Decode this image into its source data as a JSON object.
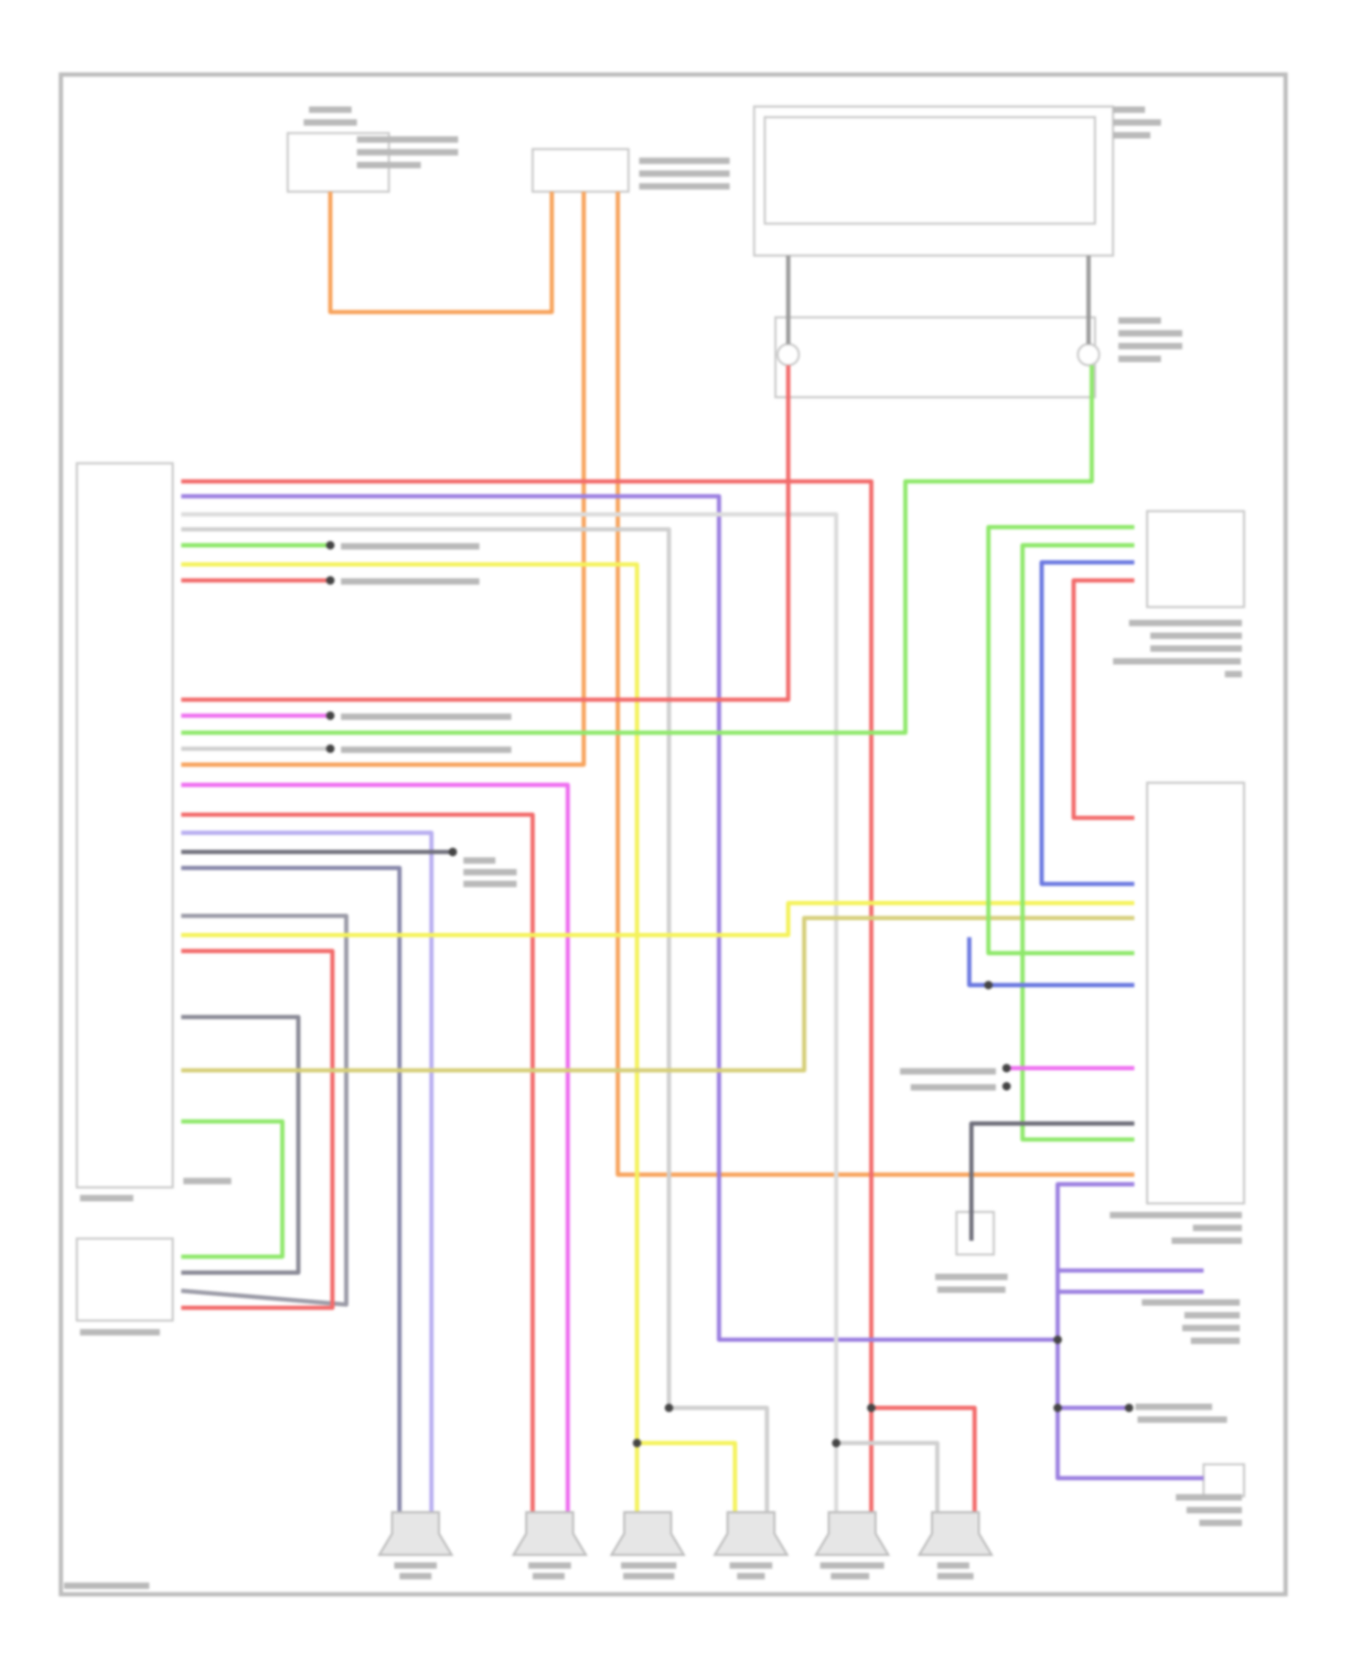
{
  "diagram": {
    "type": "wiring-diagram",
    "wire_colors": {
      "red": "#f26b6b",
      "orange": "#f7a35c",
      "purple": "#9b7fe0",
      "lavender": "#b8aef0",
      "magenta": "#ee6ff0",
      "yellow": "#f4f25a",
      "green": "#8ee86a",
      "gray": "#c8c8c8",
      "dark-gray": "#6e6e7a",
      "blue": "#6a78e0",
      "olive": "#d6cf7a"
    },
    "components": [
      {
        "id": "motor",
        "icon": "motor-icon"
      },
      {
        "id": "connector-top",
        "icon": "connector-icon"
      },
      {
        "id": "switch-assembly",
        "icon": "switch-icon"
      },
      {
        "id": "radio-unit",
        "icon": "module-icon"
      },
      {
        "id": "auxiliary-unit",
        "icon": "module-icon"
      },
      {
        "id": "upper-right-module",
        "icon": "module-icon"
      },
      {
        "id": "right-control-module",
        "icon": "module-icon"
      },
      {
        "id": "speaker-1",
        "icon": "speaker-icon"
      },
      {
        "id": "speaker-2",
        "icon": "speaker-icon"
      },
      {
        "id": "speaker-3",
        "icon": "speaker-icon"
      },
      {
        "id": "speaker-4",
        "icon": "speaker-icon"
      },
      {
        "id": "speaker-5",
        "icon": "speaker-icon"
      },
      {
        "id": "speaker-6",
        "icon": "speaker-icon"
      }
    ]
  }
}
